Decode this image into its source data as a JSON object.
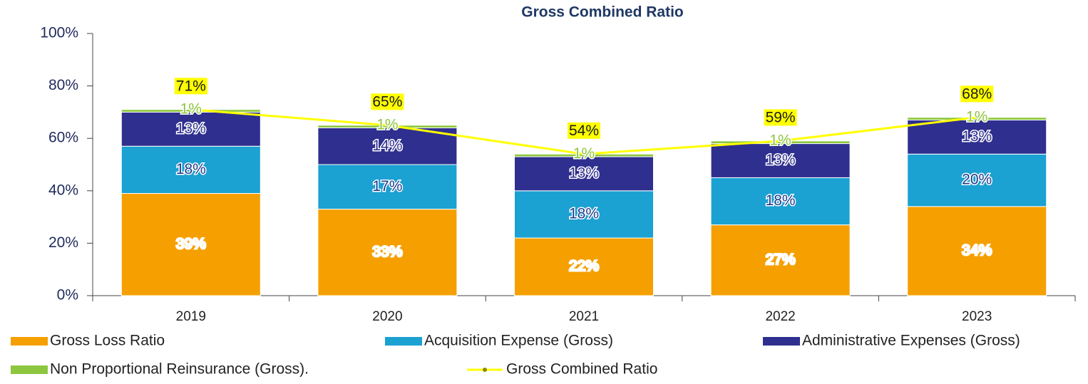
{
  "chart_data": {
    "type": "bar",
    "stacked": true,
    "title": "Gross Combined Ratio",
    "categories": [
      "2019",
      "2020",
      "2021",
      "2022",
      "2023"
    ],
    "ylim": [
      0,
      100
    ],
    "yticks": [
      {
        "value": 0,
        "label": "0%"
      },
      {
        "value": 20,
        "label": "20%"
      },
      {
        "value": 40,
        "label": "40%"
      },
      {
        "value": 60,
        "label": "60%"
      },
      {
        "value": 80,
        "label": "80%"
      },
      {
        "value": 100,
        "label": "100%"
      }
    ],
    "series": [
      {
        "name": "Gross Loss Ratio",
        "color": "#f5a000",
        "label_color": "#ffffff",
        "values": [
          39,
          33,
          22,
          27,
          34
        ],
        "value_labels": [
          "39%",
          "33%",
          "22%",
          "27%",
          "34%"
        ]
      },
      {
        "name": "Acquisition Expense (Gross)",
        "color": "#1ba1d2",
        "label_color": "#1f3c8c",
        "values": [
          18,
          17,
          18,
          18,
          20
        ],
        "value_labels": [
          "18%",
          "17%",
          "18%",
          "18%",
          "20%"
        ]
      },
      {
        "name": "Administrative Expenses (Gross)",
        "color": "#2f2f8f",
        "label_color": "#2f2f8f",
        "values": [
          13,
          14,
          13,
          13,
          13
        ],
        "value_labels": [
          "13%",
          "14%",
          "13%",
          "13%",
          "13%"
        ]
      },
      {
        "name": "Non Proportional Reinsurance (Gross).",
        "color": "#8dc63f",
        "label_color": "#8dc63f",
        "values": [
          1,
          1,
          1,
          1,
          1
        ],
        "value_labels": [
          "1%",
          "1%",
          "1%",
          "1%",
          "1%"
        ]
      },
      {
        "name": "Gross Combined Ratio",
        "type": "line",
        "color": "#ffff00",
        "label_color": "#1a1a1a",
        "values": [
          71,
          65,
          54,
          59,
          68
        ],
        "value_labels": [
          "71%",
          "65%",
          "54%",
          "59%",
          "68%"
        ]
      }
    ]
  }
}
